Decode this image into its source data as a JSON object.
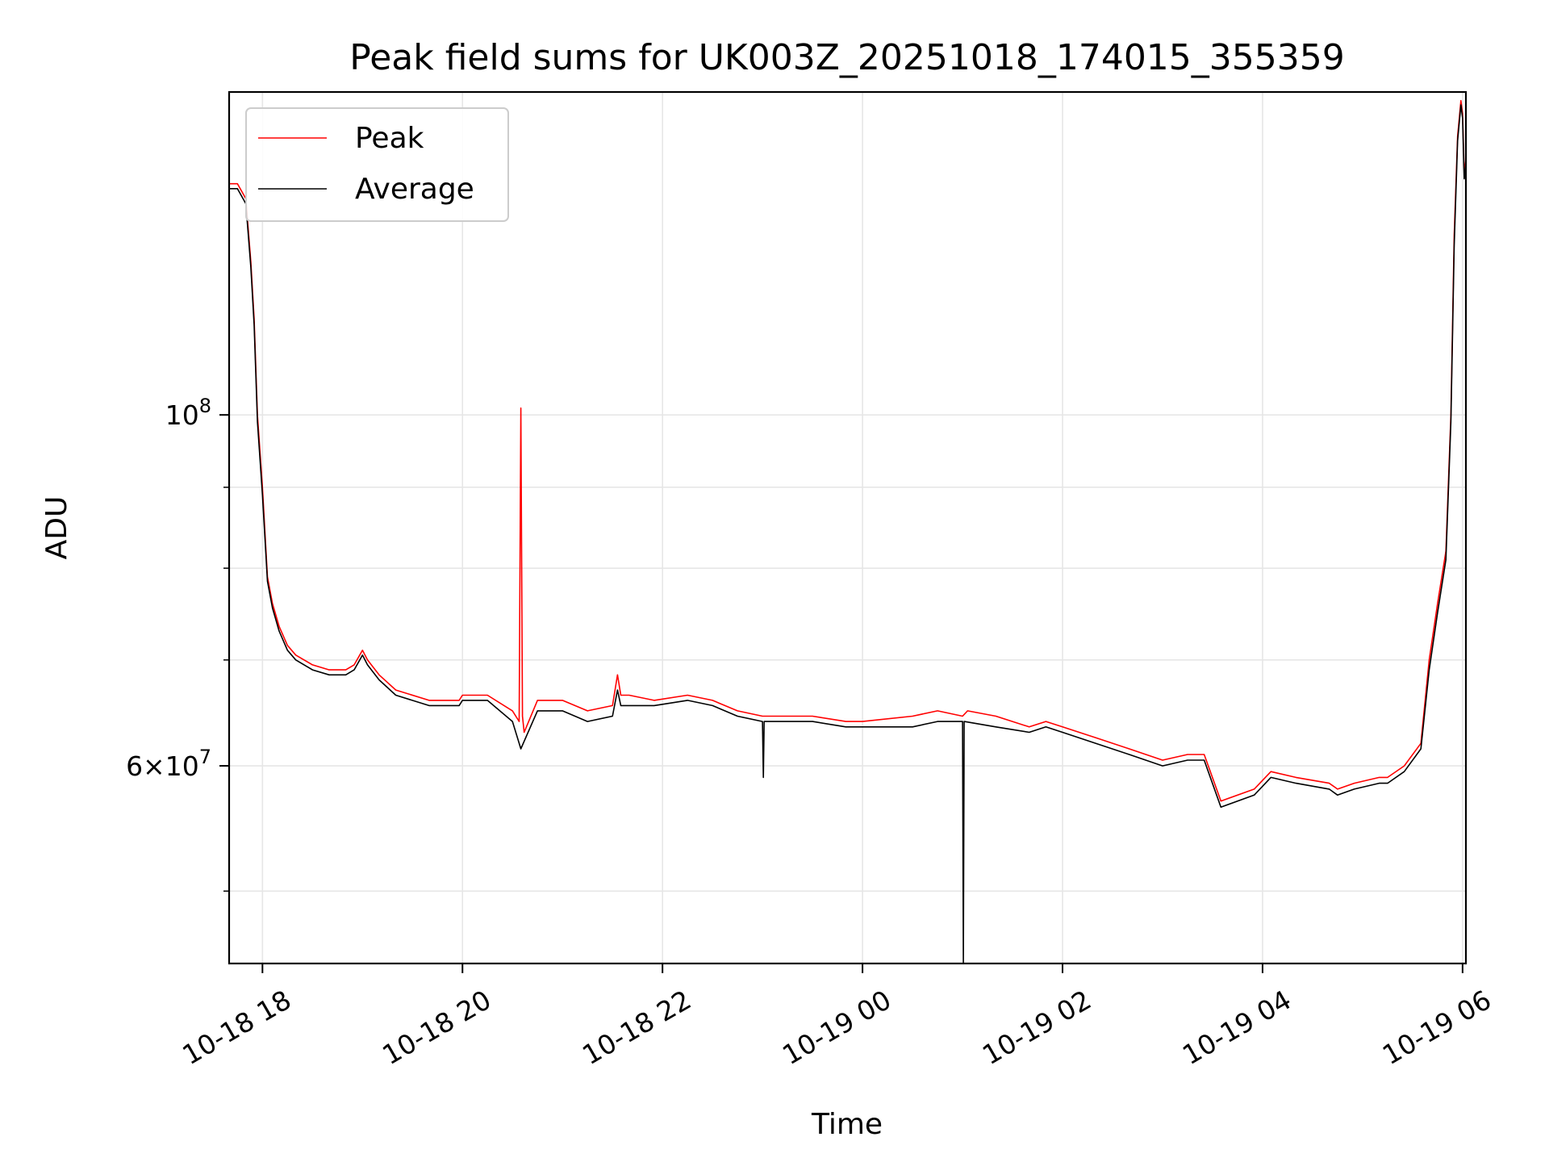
{
  "chart_data": {
    "type": "line",
    "title": "Peak field sums for UK003Z_20251018_174015_355359",
    "xlabel": "Time",
    "ylabel": "ADU",
    "yscale": "log",
    "ylim": [
      45000000,
      160000000
    ],
    "xlim": [
      "2025-10-18T17:40:00",
      "2025-10-19T06:02:00"
    ],
    "grid": true,
    "legend_position": "top-left",
    "x_ticks": [
      {
        "value": "2025-10-18T18:00:00",
        "label": "10-18 18"
      },
      {
        "value": "2025-10-18T20:00:00",
        "label": "10-18 20"
      },
      {
        "value": "2025-10-18T22:00:00",
        "label": "10-18 22"
      },
      {
        "value": "2025-10-19T00:00:00",
        "label": "10-19 00"
      },
      {
        "value": "2025-10-19T02:00:00",
        "label": "10-19 02"
      },
      {
        "value": "2025-10-19T04:00:00",
        "label": "10-19 04"
      },
      {
        "value": "2025-10-19T06:00:00",
        "label": "10-19 06"
      }
    ],
    "y_major_ticks": [
      {
        "value": 100000000,
        "base": "10",
        "exp": "8",
        "mant": ""
      },
      {
        "value": 60000000,
        "base": "10",
        "exp": "7",
        "mant": "6×"
      }
    ],
    "y_minor_ticks": [
      50000000,
      70000000,
      80000000,
      90000000
    ],
    "series": [
      {
        "name": "Peak",
        "color": "#ff0000",
        "x": [
          "2025-10-18T17:40:00",
          "2025-10-18T17:45:00",
          "2025-10-18T17:50:00",
          "2025-10-18T17:53:00",
          "2025-10-18T17:55:00",
          "2025-10-18T17:57:00",
          "2025-10-18T18:00:00",
          "2025-10-18T18:03:00",
          "2025-10-18T18:06:00",
          "2025-10-18T18:10:00",
          "2025-10-18T18:15:00",
          "2025-10-18T18:20:00",
          "2025-10-18T18:30:00",
          "2025-10-18T18:40:00",
          "2025-10-18T18:50:00",
          "2025-10-18T18:55:00",
          "2025-10-18T19:00:00",
          "2025-10-18T19:03:00",
          "2025-10-18T19:10:00",
          "2025-10-18T19:20:00",
          "2025-10-18T19:40:00",
          "2025-10-18T19:58:00",
          "2025-10-18T20:00:00",
          "2025-10-18T20:15:00",
          "2025-10-18T20:30:00",
          "2025-10-18T20:34:00",
          "2025-10-18T20:35:00",
          "2025-10-18T20:36:00",
          "2025-10-18T20:37:00",
          "2025-10-18T20:45:00",
          "2025-10-18T21:00:00",
          "2025-10-18T21:15:00",
          "2025-10-18T21:30:00",
          "2025-10-18T21:33:00",
          "2025-10-18T21:35:00",
          "2025-10-18T21:40:00",
          "2025-10-18T21:55:00",
          "2025-10-18T22:15:00",
          "2025-10-18T22:30:00",
          "2025-10-18T22:45:00",
          "2025-10-18T23:00:00",
          "2025-10-18T23:30:00",
          "2025-10-18T23:50:00",
          "2025-10-19T00:00:00",
          "2025-10-19T00:30:00",
          "2025-10-19T00:45:00",
          "2025-10-19T01:00:00",
          "2025-10-19T01:03:00",
          "2025-10-19T01:20:00",
          "2025-10-19T01:40:00",
          "2025-10-19T01:50:00",
          "2025-10-19T02:00:00",
          "2025-10-19T02:20:00",
          "2025-10-19T02:40:00",
          "2025-10-19T03:00:00",
          "2025-10-19T03:15:00",
          "2025-10-19T03:25:00",
          "2025-10-19T03:35:00",
          "2025-10-19T03:55:00",
          "2025-10-19T04:05:00",
          "2025-10-19T04:20:00",
          "2025-10-19T04:40:00",
          "2025-10-19T04:45:00",
          "2025-10-19T04:55:00",
          "2025-10-19T05:10:00",
          "2025-10-19T05:15:00",
          "2025-10-19T05:25:00",
          "2025-10-19T05:35:00",
          "2025-10-19T05:40:00",
          "2025-10-19T05:45:00",
          "2025-10-19T05:50:00",
          "2025-10-19T05:53:00",
          "2025-10-19T05:55:00",
          "2025-10-19T05:57:00",
          "2025-10-19T05:59:00",
          "2025-10-19T06:00:00",
          "2025-10-19T06:01:00",
          "2025-10-19T06:02:00"
        ],
        "y": [
          140000000,
          140000000,
          137000000,
          125000000,
          115000000,
          100000000,
          90000000,
          79000000,
          76000000,
          73500000,
          71500000,
          70500000,
          69500000,
          69000000,
          69000000,
          69500000,
          71000000,
          70000000,
          68500000,
          67000000,
          66000000,
          66000000,
          66500000,
          66500000,
          65000000,
          64000000,
          101000000,
          64500000,
          63000000,
          66000000,
          66000000,
          65000000,
          65500000,
          68500000,
          66500000,
          66500000,
          66000000,
          66500000,
          66000000,
          65000000,
          64500000,
          64500000,
          64000000,
          64000000,
          64500000,
          65000000,
          64500000,
          65000000,
          64500000,
          63500000,
          64000000,
          63500000,
          62500000,
          61500000,
          60500000,
          61000000,
          61000000,
          57000000,
          58000000,
          59500000,
          59000000,
          58500000,
          58000000,
          58500000,
          59000000,
          59000000,
          60000000,
          62000000,
          70000000,
          76000000,
          82000000,
          100000000,
          130000000,
          150000000,
          158000000,
          155000000,
          142000000,
          145000000
        ]
      },
      {
        "name": "Average",
        "color": "#000000",
        "x": [
          "2025-10-18T17:40:00",
          "2025-10-18T17:45:00",
          "2025-10-18T17:50:00",
          "2025-10-18T17:53:00",
          "2025-10-18T17:55:00",
          "2025-10-18T17:57:00",
          "2025-10-18T18:00:00",
          "2025-10-18T18:03:00",
          "2025-10-18T18:06:00",
          "2025-10-18T18:10:00",
          "2025-10-18T18:15:00",
          "2025-10-18T18:20:00",
          "2025-10-18T18:30:00",
          "2025-10-18T18:40:00",
          "2025-10-18T18:50:00",
          "2025-10-18T18:55:00",
          "2025-10-18T19:00:00",
          "2025-10-18T19:03:00",
          "2025-10-18T19:10:00",
          "2025-10-18T19:20:00",
          "2025-10-18T19:40:00",
          "2025-10-18T19:58:00",
          "2025-10-18T20:00:00",
          "2025-10-18T20:15:00",
          "2025-10-18T20:30:00",
          "2025-10-18T20:35:00",
          "2025-10-18T20:45:00",
          "2025-10-18T21:00:00",
          "2025-10-18T21:15:00",
          "2025-10-18T21:30:00",
          "2025-10-18T21:33:00",
          "2025-10-18T21:35:00",
          "2025-10-18T21:40:00",
          "2025-10-18T21:55:00",
          "2025-10-18T22:15:00",
          "2025-10-18T22:30:00",
          "2025-10-18T22:45:00",
          "2025-10-18T23:00:00",
          "2025-10-18T23:00:30",
          "2025-10-18T23:01:00",
          "2025-10-18T23:30:00",
          "2025-10-18T23:50:00",
          "2025-10-19T00:00:00",
          "2025-10-19T00:30:00",
          "2025-10-19T00:45:00",
          "2025-10-19T01:00:00",
          "2025-10-19T01:00:30",
          "2025-10-19T01:01:00",
          "2025-10-19T01:20:00",
          "2025-10-19T01:40:00",
          "2025-10-19T01:50:00",
          "2025-10-19T02:00:00",
          "2025-10-19T02:20:00",
          "2025-10-19T02:40:00",
          "2025-10-19T03:00:00",
          "2025-10-19T03:15:00",
          "2025-10-19T03:25:00",
          "2025-10-19T03:35:00",
          "2025-10-19T03:55:00",
          "2025-10-19T04:05:00",
          "2025-10-19T04:20:00",
          "2025-10-19T04:40:00",
          "2025-10-19T04:45:00",
          "2025-10-19T04:55:00",
          "2025-10-19T05:10:00",
          "2025-10-19T05:15:00",
          "2025-10-19T05:25:00",
          "2025-10-19T05:35:00",
          "2025-10-19T05:40:00",
          "2025-10-19T05:45:00",
          "2025-10-19T05:50:00",
          "2025-10-19T05:53:00",
          "2025-10-19T05:55:00",
          "2025-10-19T05:57:00",
          "2025-10-19T05:59:00",
          "2025-10-19T06:00:00",
          "2025-10-19T06:01:00",
          "2025-10-19T06:02:00"
        ],
        "y": [
          139000000,
          139000000,
          136000000,
          124000000,
          114000000,
          99000000,
          89000000,
          78500000,
          75500000,
          73000000,
          71000000,
          70000000,
          69000000,
          68500000,
          68500000,
          69000000,
          70500000,
          69500000,
          68000000,
          66500000,
          65500000,
          65500000,
          66000000,
          66000000,
          64000000,
          61500000,
          65000000,
          65000000,
          64000000,
          64500000,
          67000000,
          65500000,
          65500000,
          65500000,
          66000000,
          65500000,
          64500000,
          64000000,
          59000000,
          64000000,
          64000000,
          63500000,
          63500000,
          63500000,
          64000000,
          64000000,
          45000000,
          64000000,
          63500000,
          63000000,
          63500000,
          63000000,
          62000000,
          61000000,
          60000000,
          60500000,
          60500000,
          56500000,
          57500000,
          59000000,
          58500000,
          58000000,
          57500000,
          58000000,
          58500000,
          58500000,
          59500000,
          61500000,
          69000000,
          75000000,
          81000000,
          99000000,
          128000000,
          149000000,
          157000000,
          154000000,
          141000000,
          144000000
        ]
      }
    ]
  }
}
